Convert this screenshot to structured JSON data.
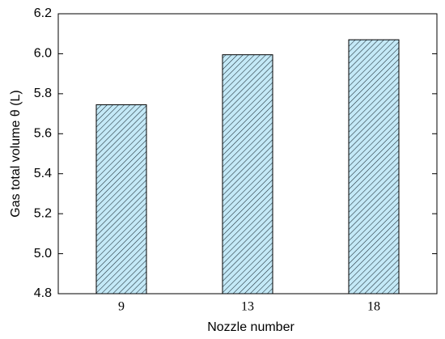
{
  "chart_data": {
    "type": "bar",
    "x_label": "Nozzle number",
    "y_label": "Gas total volume θ (L)",
    "categories": [
      "9",
      "13",
      "18"
    ],
    "values": [
      5.745,
      5.995,
      6.07
    ],
    "color": "#c4e9f7",
    "ylim": [
      4.8,
      6.2
    ],
    "yticks": [
      4.8,
      {
        "value": 5,
        "label": "5.0"
      },
      5.2,
      5.4,
      5.6,
      5.8,
      {
        "value": 6,
        "label": "6.0"
      },
      6.2
    ]
  }
}
